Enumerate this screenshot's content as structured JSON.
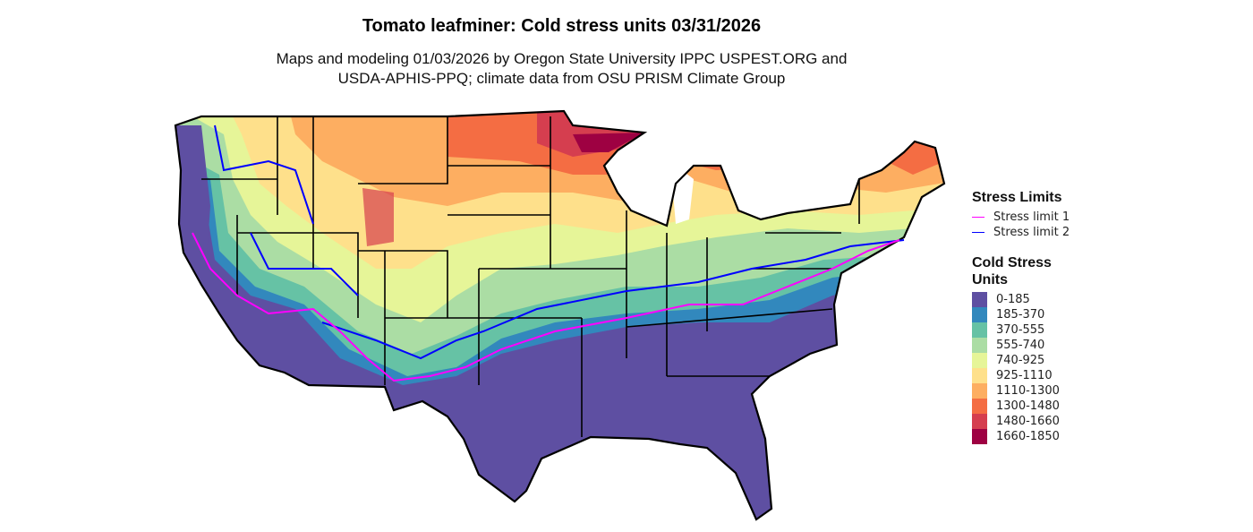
{
  "title": "Tomato leafminer: Cold stress units 03/31/2026",
  "subtitle_line1": "Maps and modeling 01/03/2026 by Oregon State University IPPC USPEST.ORG and",
  "subtitle_line2": "USDA-APHIS-PPQ; climate data from OSU PRISM Climate Group",
  "legend": {
    "limits_title": "Stress Limits",
    "limits": [
      {
        "label": "Stress limit 1",
        "color": "#FF00FF"
      },
      {
        "label": "Stress limit 2",
        "color": "#0000FF"
      }
    ],
    "units_title_1": "Cold Stress",
    "units_title_2": "Units",
    "classes": [
      {
        "label": "0-185",
        "color": "#5E4FA2"
      },
      {
        "label": "185-370",
        "color": "#3288BD"
      },
      {
        "label": "370-555",
        "color": "#66C2A5"
      },
      {
        "label": "555-740",
        "color": "#ABDDA4"
      },
      {
        "label": "740-925",
        "color": "#E6F598"
      },
      {
        "label": "925-1110",
        "color": "#FEE08B"
      },
      {
        "label": "1110-1300",
        "color": "#FDAE61"
      },
      {
        "label": "1300-1480",
        "color": "#F46D43"
      },
      {
        "label": "1480-1660",
        "color": "#D53E4F"
      },
      {
        "label": "1660-1850",
        "color": "#9E0142"
      }
    ]
  }
}
